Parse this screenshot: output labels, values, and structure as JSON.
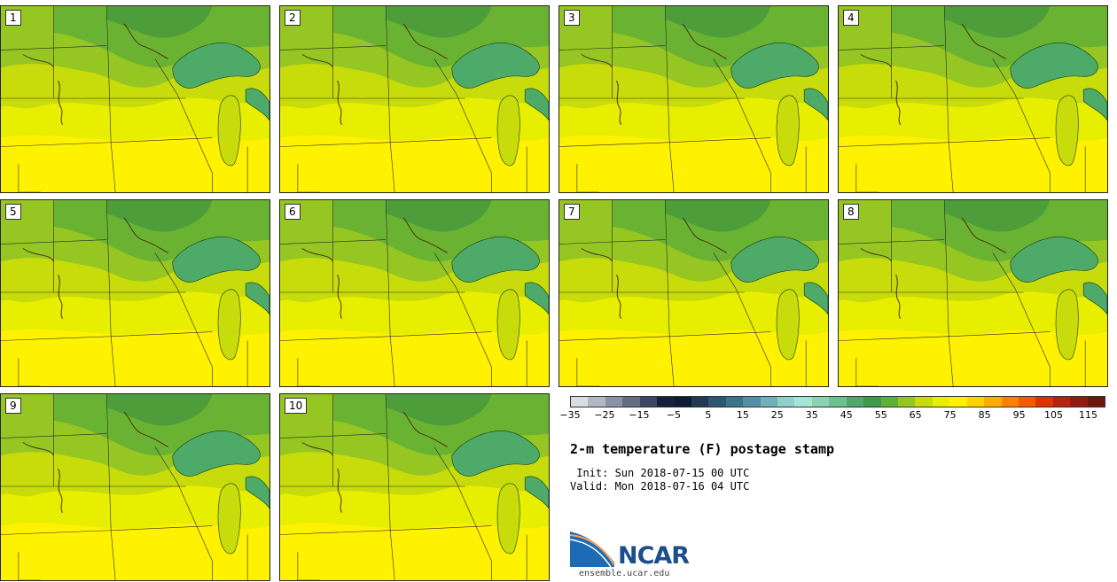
{
  "panels": [
    {
      "label": "1"
    },
    {
      "label": "2"
    },
    {
      "label": "3"
    },
    {
      "label": "4"
    },
    {
      "label": "5"
    },
    {
      "label": "6"
    },
    {
      "label": "7"
    },
    {
      "label": "8"
    },
    {
      "label": "9"
    },
    {
      "label": "10"
    }
  ],
  "colorbar": {
    "colors": [
      "#d9dde3",
      "#b2b8c2",
      "#8a93a3",
      "#626e84",
      "#3b4865",
      "#14213d",
      "#0d1c33",
      "#1f3a52",
      "#2d5670",
      "#3d718c",
      "#5490a5",
      "#70b0b9",
      "#8fcfcc",
      "#a5e5d6",
      "#8bd3b0",
      "#6ac08e",
      "#4daa68",
      "#3f9a4d",
      "#5db135",
      "#95c621",
      "#c7dc0a",
      "#e8ee00",
      "#fff200",
      "#ffd200",
      "#ffac00",
      "#ff8000",
      "#f65a00",
      "#dc3300",
      "#b82310",
      "#961a14",
      "#701510"
    ],
    "ticks": [
      "−35",
      "−25",
      "−15",
      "−5",
      "5",
      "15",
      "25",
      "35",
      "45",
      "55",
      "65",
      "75",
      "85",
      "95",
      "105",
      "115"
    ]
  },
  "title": "2-m temperature (F) postage stamp",
  "init": " Init: Sun 2018-07-15 00 UTC",
  "valid": "Valid: Mon 2018-07-16 04 UTC",
  "logo": {
    "name": "NCAR",
    "url": "ensemble.ucar.edu"
  }
}
